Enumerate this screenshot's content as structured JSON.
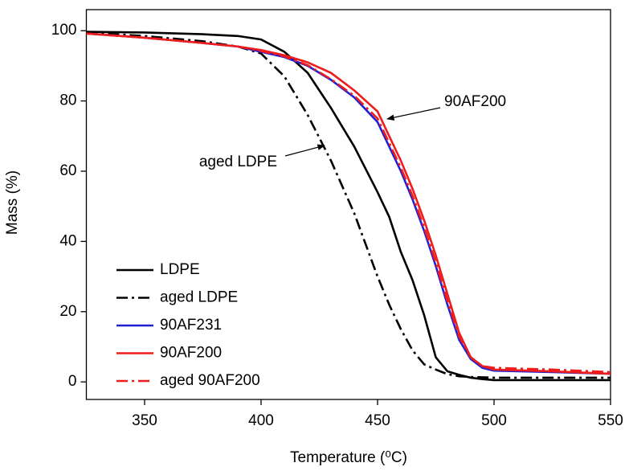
{
  "chart_data": {
    "type": "line",
    "x_label": "Temperature (⁰C)",
    "y_label": "Mass (%)",
    "x": [
      325,
      350,
      375,
      390,
      400,
      410,
      420,
      430,
      440,
      450,
      455,
      460,
      465,
      470,
      475,
      480,
      485,
      490,
      495,
      500,
      525,
      550
    ],
    "series": [
      {
        "name": "LDPE",
        "color": "#000000",
        "linestyle": "solid",
        "values": [
          99.7,
          99.5,
          99,
          98.5,
          97.5,
          94,
          88,
          78,
          67,
          54,
          47,
          37,
          29,
          19,
          7,
          3,
          2,
          1.2,
          0.8,
          0.5,
          0.5,
          0.5
        ]
      },
      {
        "name": "aged LDPE",
        "color": "#000000",
        "linestyle": "dashdot",
        "values": [
          99.5,
          98.5,
          97,
          95.5,
          93.5,
          87,
          76,
          63,
          48,
          30,
          22,
          15,
          9,
          5,
          3.5,
          2.2,
          1.6,
          1.4,
          1.3,
          1.2,
          1.2,
          1.2
        ]
      },
      {
        "name": "90AF231",
        "color": "#1f1fd6",
        "linestyle": "solid",
        "values": [
          99.2,
          98,
          96.5,
          95.5,
          94,
          92.5,
          90,
          86,
          81,
          74,
          67,
          60,
          52,
          43,
          33,
          22,
          12,
          6.5,
          4,
          3.2,
          2.8,
          2.3
        ]
      },
      {
        "name": "90AF200",
        "color": "#ee1c1c",
        "linestyle": "solid",
        "values": [
          99.2,
          98,
          96.5,
          95.5,
          94.5,
          93,
          91,
          88,
          83,
          77,
          70,
          63,
          55,
          46,
          36,
          25,
          14,
          7,
          4.5,
          3.5,
          3,
          2.3
        ]
      },
      {
        "name": "aged 90AF200",
        "color": "#ee1c1c",
        "linestyle": "dashdot",
        "values": [
          99.2,
          98,
          96.5,
          95.5,
          94.2,
          92.7,
          90.2,
          86.2,
          81.5,
          75,
          68,
          61,
          53,
          44,
          34,
          23,
          13,
          7,
          4.5,
          4,
          3.5,
          2.8
        ]
      }
    ],
    "xlim": [
      325,
      550
    ],
    "xticks": [
      350,
      400,
      450,
      500,
      550
    ],
    "ylim": [
      -5,
      106
    ],
    "yticks": [
      0,
      20,
      40,
      60,
      80,
      100
    ],
    "legend": "lower left",
    "annotations": [
      {
        "text": "90AF200"
      },
      {
        "text": "aged LDPE"
      }
    ]
  }
}
